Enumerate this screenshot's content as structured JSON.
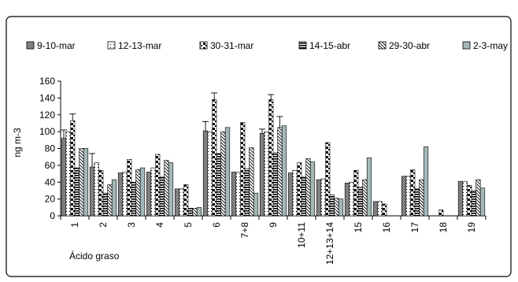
{
  "chart_data": {
    "type": "bar",
    "ylabel": "ng m-3",
    "xlabel": "Ácido graso",
    "ylim": [
      0,
      160
    ],
    "yticks": [
      0,
      20,
      40,
      60,
      80,
      100,
      120,
      140,
      160
    ],
    "grid": false,
    "legend_position": "top",
    "categories": [
      "1",
      "2",
      "3",
      "4",
      "5",
      "6",
      "7+8",
      "9",
      "10+11",
      "12+13+14",
      "15",
      "16",
      "17",
      "18",
      "19"
    ],
    "series": [
      {
        "name": "9-10-mar",
        "values": [
          92,
          58,
          51,
          52,
          32,
          101,
          52,
          98,
          51,
          43,
          39,
          17,
          47,
          0,
          41
        ]
      },
      {
        "name": "12-13-mar",
        "values": [
          100,
          63,
          52,
          57,
          32,
          100,
          52,
          100,
          54,
          44,
          40,
          17,
          47,
          0,
          41
        ]
      },
      {
        "name": "30-31-mar",
        "values": [
          113,
          54,
          67,
          73,
          37,
          138,
          111,
          138,
          63,
          87,
          54,
          14,
          55,
          7,
          36
        ]
      },
      {
        "name": "14-15-abr",
        "values": [
          57,
          27,
          40,
          46,
          9,
          74,
          56,
          75,
          46,
          25,
          34,
          0,
          32,
          0,
          30
        ]
      },
      {
        "name": "29-30-abr",
        "values": [
          80,
          37,
          55,
          66,
          9,
          100,
          81,
          105,
          68,
          21,
          43,
          0,
          43,
          0,
          43
        ]
      },
      {
        "name": "2-3-may",
        "values": [
          80,
          43,
          57,
          63,
          10,
          105,
          27,
          107,
          64,
          20,
          69,
          0,
          82,
          0,
          33
        ]
      }
    ],
    "error_bars": [
      {
        "category": "1",
        "series": "9-10-mar",
        "high": 102
      },
      {
        "category": "1",
        "series": "30-31-mar",
        "high": 121
      },
      {
        "category": "2",
        "series": "9-10-mar",
        "high": 74
      },
      {
        "category": "6",
        "series": "9-10-mar",
        "high": 112
      },
      {
        "category": "6",
        "series": "30-31-mar",
        "high": 146
      },
      {
        "category": "9",
        "series": "9-10-mar",
        "high": 103
      },
      {
        "category": "9",
        "series": "30-31-mar",
        "high": 144
      },
      {
        "category": "9",
        "series": "29-30-abr",
        "high": 118
      }
    ],
    "colors": {
      "axis": "#000000",
      "border": "#000000",
      "may_fill": "#a5b8b8",
      "pattern": "#000000"
    }
  }
}
